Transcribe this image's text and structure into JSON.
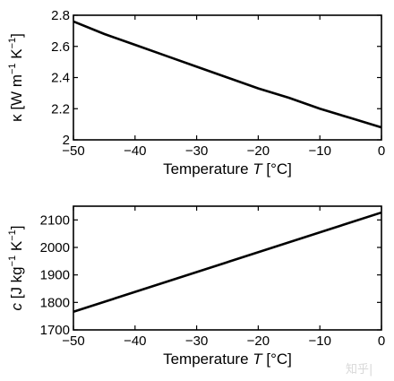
{
  "chart_data": [
    {
      "type": "line",
      "xlabel": {
        "prefix": "Temperature ",
        "var": "T",
        "unit": " [°C]"
      },
      "ylabel": {
        "symbol": "κ",
        "unit_open": "  [W m",
        "exp1": "−1",
        "mid": " K",
        "exp2": "−1",
        "unit_close": "]"
      },
      "xlim": [
        -50,
        0
      ],
      "ylim": [
        2.0,
        2.8
      ],
      "x_ticks": [
        -50,
        -40,
        -30,
        -20,
        -10,
        0
      ],
      "x_tick_labels": [
        "−50",
        "−40",
        "−30",
        "−20",
        "−10",
        "0"
      ],
      "y_ticks": [
        2.0,
        2.2,
        2.4,
        2.6,
        2.8
      ],
      "y_tick_labels": [
        "2",
        "2.2",
        "2.4",
        "2.6",
        "2.8"
      ],
      "series": [
        {
          "x": [
            -50,
            -45,
            -40,
            -35,
            -30,
            -25,
            -20,
            -15,
            -10,
            -5,
            0
          ],
          "y": [
            2.76,
            2.68,
            2.61,
            2.54,
            2.47,
            2.4,
            2.33,
            2.27,
            2.2,
            2.14,
            2.08
          ]
        }
      ]
    },
    {
      "type": "line",
      "xlabel": {
        "prefix": "Temperature ",
        "var": "T",
        "unit": " [°C]"
      },
      "ylabel": {
        "symbol": "c",
        "unit_open": "  [J kg",
        "exp1": "−1",
        "mid": " K",
        "exp2": "−1",
        "unit_close": "]"
      },
      "xlim": [
        -50,
        0
      ],
      "ylim": [
        1700,
        2150
      ],
      "x_ticks": [
        -50,
        -40,
        -30,
        -20,
        -10,
        0
      ],
      "x_tick_labels": [
        "−50",
        "−40",
        "−30",
        "−20",
        "−10",
        "0"
      ],
      "y_ticks": [
        1700,
        1800,
        1900,
        2000,
        2100
      ],
      "y_tick_labels": [
        "1700",
        "1800",
        "1900",
        "2000",
        "2100"
      ],
      "series": [
        {
          "x": [
            -50,
            0
          ],
          "y": [
            1766,
            2127
          ]
        }
      ]
    }
  ],
  "watermark": "知乎|"
}
